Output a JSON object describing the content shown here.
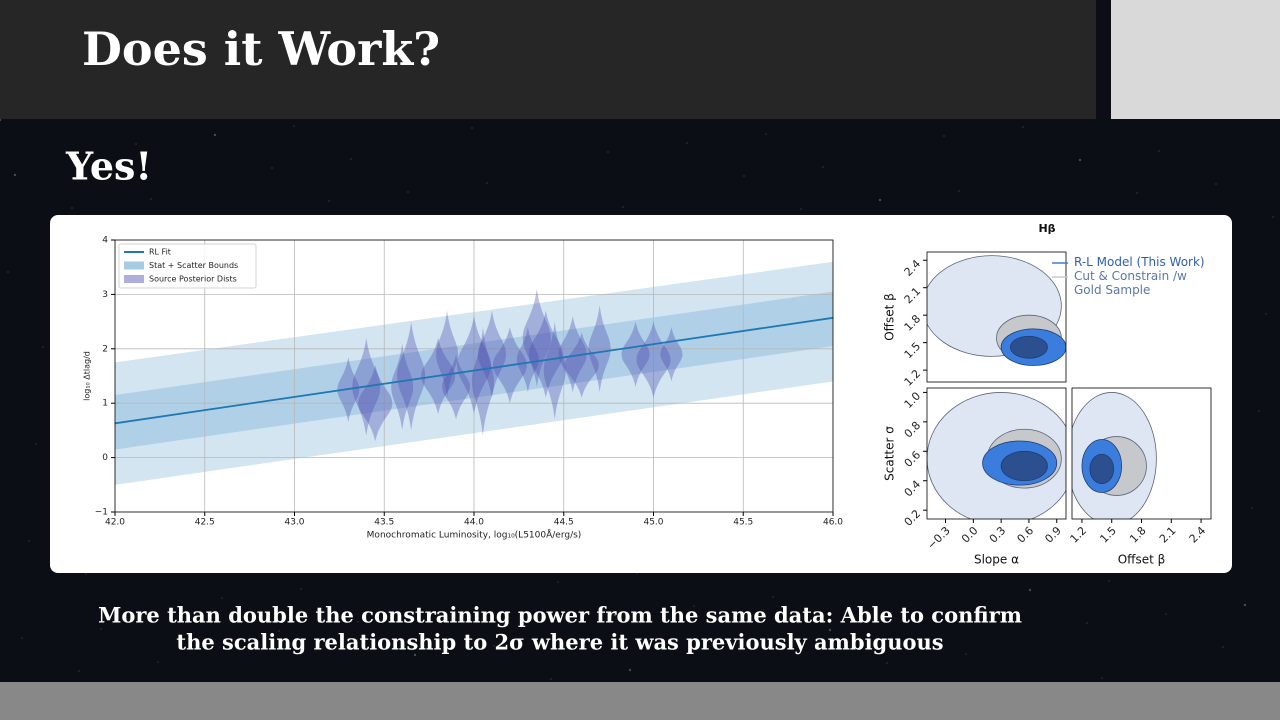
{
  "header": {
    "title": "Does it Work?"
  },
  "subtitle": "Yes!",
  "caption": [
    "More than double the constraining power from the same data: Able to confirm",
    "the scaling relationship to 2σ where it was previously ambiguous"
  ],
  "chart_data": [
    {
      "type": "line",
      "x_label": "Monochromatic Luminosity, log₁₀(L5100Å/erg/s)",
      "y_label": "log₁₀ Δtlag/d",
      "x": [
        42,
        46
      ],
      "xlim": [
        42,
        46
      ],
      "xticks": [
        {
          "value": 42,
          "label": "42.0"
        },
        42.5,
        {
          "value": 43,
          "label": "43.0"
        },
        43.5,
        {
          "value": 44,
          "label": "44.0"
        },
        44.5,
        {
          "value": 45,
          "label": "45.0"
        },
        45.5,
        {
          "value": 46,
          "label": "46.0"
        }
      ],
      "ylim": [
        -1,
        4
      ],
      "yticks": [
        {
          "value": -1,
          "label": "−1"
        },
        0,
        1,
        2,
        3,
        4
      ],
      "grid": true,
      "legend": "upper-left",
      "series": [
        {
          "name": "RL Fit",
          "color": "#1f77b4",
          "values": [
            0.63,
            2.57
          ]
        },
        {
          "name": "Stat + Scatter Bounds",
          "color": "#a6cbe3",
          "lower": [
            -0.5,
            1.4
          ],
          "upper": [
            1.75,
            3.6
          ],
          "inner_lower": [
            0.15,
            2.05
          ],
          "inner_upper": [
            1.15,
            3.05
          ]
        },
        {
          "name": "Source Posterior Dists",
          "color": "#4b4bb0",
          "x": [
            43.3,
            43.4,
            43.45,
            43.6,
            43.65,
            43.8,
            43.85,
            43.9,
            44.0,
            44.05,
            44.1,
            44.2,
            44.3,
            44.35,
            44.4,
            44.45,
            44.55,
            44.6,
            44.7,
            44.9,
            45.0,
            45.1
          ],
          "values": [
            1.25,
            1.3,
            1.0,
            1.3,
            1.5,
            1.5,
            1.9,
            1.3,
            1.7,
            1.4,
            1.9,
            1.7,
            1.8,
            2.2,
            1.9,
            1.6,
            1.9,
            1.7,
            2.0,
            1.9,
            1.8,
            1.9
          ],
          "spread": [
            0.6,
            0.9,
            0.7,
            0.8,
            1.0,
            0.7,
            0.8,
            0.6,
            0.9,
            1.0,
            0.8,
            0.7,
            0.6,
            0.9,
            0.8,
            0.9,
            0.7,
            0.6,
            0.8,
            0.6,
            0.7,
            0.5
          ]
        }
      ]
    },
    {
      "type": "corner",
      "title": "Hβ",
      "series": [
        {
          "name": "R-L Model (This Work)",
          "color": "#3b7ddd",
          "inner_color": "#2b4f8f"
        },
        {
          "name": "Cut & Constrain /w Gold Sample",
          "color": "#dfe6f3",
          "inner_color": "#c6c8cc"
        }
      ],
      "panels": [
        {
          "ylabel": "Offset β",
          "xlim": [
            -0.5,
            1.0
          ],
          "ylim": [
            1.07,
            2.49
          ],
          "yticks": [
            1.2,
            1.5,
            1.8,
            2.1,
            2.4
          ],
          "contours": [
            {
              "series": 1,
              "level": 2,
              "cx": 0.2,
              "cy": 1.9,
              "rx": 0.75,
              "ry": 0.55
            },
            {
              "series": 1,
              "level": 1,
              "cx": 0.6,
              "cy": 1.55,
              "rx": 0.35,
              "ry": 0.25
            },
            {
              "series": 0,
              "level": 2,
              "cx": 0.65,
              "cy": 1.45,
              "rx": 0.35,
              "ry": 0.2
            },
            {
              "series": 0,
              "level": 1,
              "cx": 0.6,
              "cy": 1.45,
              "rx": 0.2,
              "ry": 0.12
            }
          ]
        },
        {
          "xlabel": "Slope α",
          "ylabel": "Scatter σ",
          "xlim": [
            -0.5,
            1.0
          ],
          "ylim": [
            0.14,
            1.03
          ],
          "xticks": [
            {
              "value": -0.3,
              "label": "−0.3"
            },
            {
              "value": 0,
              "label": "0.0"
            },
            0.3,
            0.6,
            0.9
          ],
          "yticks": [
            0.2,
            0.4,
            0.6,
            0.8,
            {
              "value": 1,
              "label": "1.0"
            }
          ],
          "contours": [
            {
              "series": 1,
              "level": 2,
              "cx": 0.3,
              "cy": 0.55,
              "rx": 0.8,
              "ry": 0.45
            },
            {
              "series": 1,
              "level": 1,
              "cx": 0.55,
              "cy": 0.55,
              "rx": 0.4,
              "ry": 0.2
            },
            {
              "series": 0,
              "level": 2,
              "cx": 0.5,
              "cy": 0.52,
              "rx": 0.4,
              "ry": 0.15
            },
            {
              "series": 0,
              "level": 1,
              "cx": 0.55,
              "cy": 0.5,
              "rx": 0.25,
              "ry": 0.1
            }
          ]
        },
        {
          "xlabel": "Offset β",
          "xlim": [
            1.1,
            2.5
          ],
          "ylim": [
            0.14,
            1.03
          ],
          "xticks": [
            1.2,
            1.5,
            1.8,
            2.1,
            2.4
          ],
          "contours": [
            {
              "series": 1,
              "level": 2,
              "cx": 1.5,
              "cy": 0.55,
              "rx": 0.45,
              "ry": 0.45
            },
            {
              "series": 1,
              "level": 1,
              "cx": 1.55,
              "cy": 0.5,
              "rx": 0.3,
              "ry": 0.2
            },
            {
              "series": 0,
              "level": 2,
              "cx": 1.4,
              "cy": 0.5,
              "rx": 0.2,
              "ry": 0.18
            },
            {
              "series": 0,
              "level": 1,
              "cx": 1.4,
              "cy": 0.48,
              "rx": 0.12,
              "ry": 0.1
            }
          ]
        }
      ]
    }
  ]
}
